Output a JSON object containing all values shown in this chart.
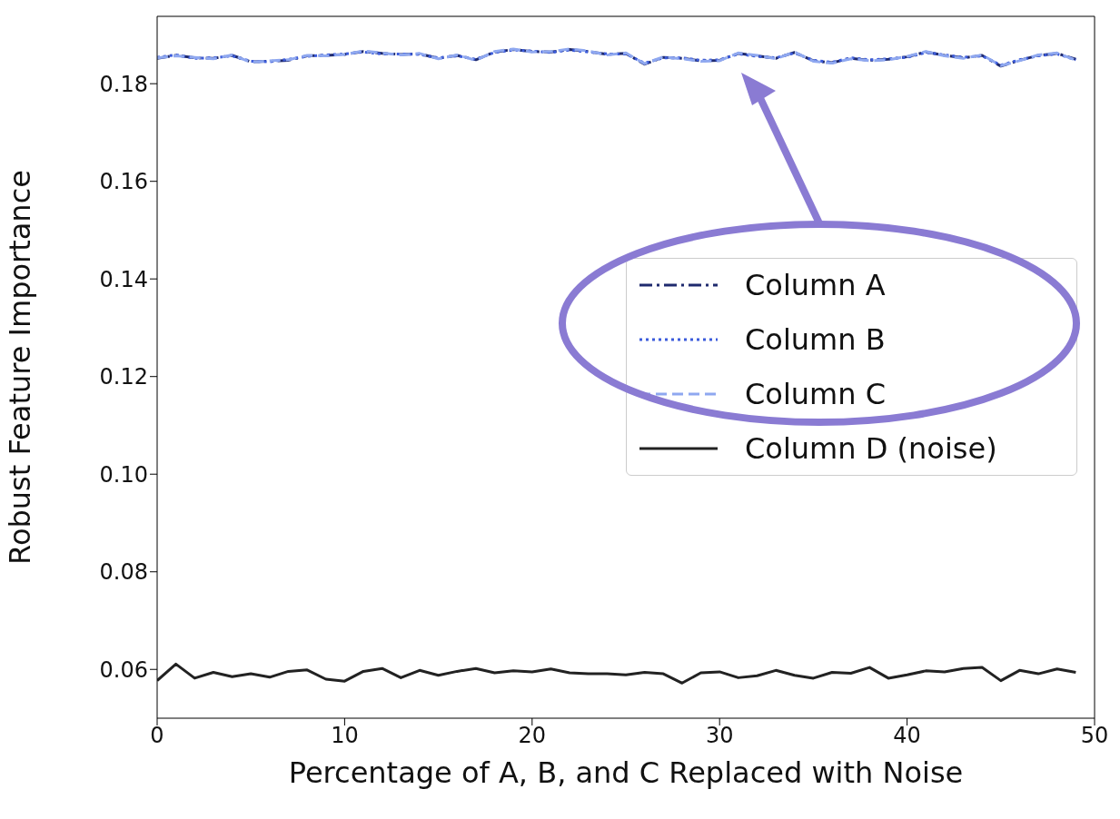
{
  "chart_data": {
    "type": "line",
    "xlabel": "Percentage of A, B, and C Replaced with Noise",
    "ylabel": "Robust Feature Importance",
    "x": [
      0,
      1,
      2,
      3,
      4,
      5,
      6,
      7,
      8,
      9,
      10,
      11,
      12,
      13,
      14,
      15,
      16,
      17,
      18,
      19,
      20,
      21,
      22,
      23,
      24,
      25,
      26,
      27,
      28,
      29,
      30,
      31,
      32,
      33,
      34,
      35,
      36,
      37,
      38,
      39,
      40,
      41,
      42,
      43,
      44,
      45,
      46,
      47,
      48,
      49
    ],
    "series": [
      {
        "name": "Column A",
        "color": "#1f2a6e",
        "line_style": "dashdot",
        "values": [
          0.1852,
          0.1858,
          0.1853,
          0.1852,
          0.1858,
          0.1845,
          0.1846,
          0.1848,
          0.1857,
          0.1858,
          0.186,
          0.1866,
          0.1862,
          0.186,
          0.1861,
          0.1852,
          0.1858,
          0.1849,
          0.1865,
          0.187,
          0.1866,
          0.1865,
          0.187,
          0.1866,
          0.186,
          0.1862,
          0.184,
          0.1854,
          0.1852,
          0.1847,
          0.1848,
          0.1862,
          0.1857,
          0.1852,
          0.1864,
          0.1847,
          0.1843,
          0.1852,
          0.1848,
          0.185,
          0.1855,
          0.1865,
          0.1858,
          0.1853,
          0.1858,
          0.1836,
          0.1848,
          0.1858,
          0.1862,
          0.185
        ]
      },
      {
        "name": "Column B",
        "color": "#3b5bdb",
        "line_style": "dotted",
        "values": [
          0.1854,
          0.1859,
          0.1852,
          0.1853,
          0.1857,
          0.1846,
          0.1845,
          0.185,
          0.1856,
          0.1859,
          0.1861,
          0.1865,
          0.1861,
          0.1861,
          0.186,
          0.1853,
          0.1857,
          0.185,
          0.1864,
          0.1869,
          0.1867,
          0.1864,
          0.1869,
          0.1865,
          0.1861,
          0.1861,
          0.1842,
          0.1853,
          0.1853,
          0.1848,
          0.1849,
          0.1861,
          0.1856,
          0.1853,
          0.1863,
          0.1848,
          0.1844,
          0.1853,
          0.1849,
          0.1851,
          0.1854,
          0.1864,
          0.1859,
          0.1854,
          0.1857,
          0.1838,
          0.1849,
          0.1857,
          0.1861,
          0.1849
        ]
      },
      {
        "name": "Column C",
        "color": "#8fa8f0",
        "line_style": "dashed",
        "values": [
          0.1853,
          0.1857,
          0.1854,
          0.1851,
          0.1859,
          0.1844,
          0.1847,
          0.1849,
          0.1858,
          0.1857,
          0.186,
          0.1867,
          0.1863,
          0.1859,
          0.1862,
          0.1851,
          0.1859,
          0.1848,
          0.1866,
          0.1871,
          0.1865,
          0.1866,
          0.1871,
          0.1867,
          0.1859,
          0.1863,
          0.1841,
          0.1855,
          0.1851,
          0.1846,
          0.1847,
          0.1863,
          0.1858,
          0.1851,
          0.1865,
          0.1846,
          0.1842,
          0.1851,
          0.1847,
          0.1849,
          0.1856,
          0.1866,
          0.1857,
          0.1852,
          0.1859,
          0.1837,
          0.1847,
          0.1859,
          0.1863,
          0.1848
        ]
      },
      {
        "name": "Column D (noise)",
        "color": "#222222",
        "line_style": "solid",
        "values": [
          0.0577,
          0.0611,
          0.0582,
          0.0594,
          0.0585,
          0.0591,
          0.0584,
          0.0596,
          0.0599,
          0.058,
          0.0576,
          0.0596,
          0.0602,
          0.0583,
          0.0598,
          0.0588,
          0.0596,
          0.0602,
          0.0593,
          0.0597,
          0.0595,
          0.0601,
          0.0593,
          0.0591,
          0.0591,
          0.0589,
          0.0594,
          0.0591,
          0.0572,
          0.0593,
          0.0595,
          0.0583,
          0.0587,
          0.0598,
          0.0588,
          0.0582,
          0.0594,
          0.0592,
          0.0604,
          0.0582,
          0.0589,
          0.0597,
          0.0595,
          0.0602,
          0.0604,
          0.0577,
          0.0598,
          0.0591,
          0.0601,
          0.0594
        ]
      }
    ],
    "xlim": [
      0,
      50
    ],
    "xticks": [
      0,
      10,
      20,
      30,
      40,
      50
    ],
    "ylim": [
      0.05,
      0.1938
    ],
    "yticks": [
      0.06,
      0.08,
      {
        "value": 0.1,
        "label": "0.10"
      },
      0.12,
      0.14,
      0.16,
      0.18
    ],
    "grid": false,
    "legend": "center right",
    "marker": "none"
  }
}
